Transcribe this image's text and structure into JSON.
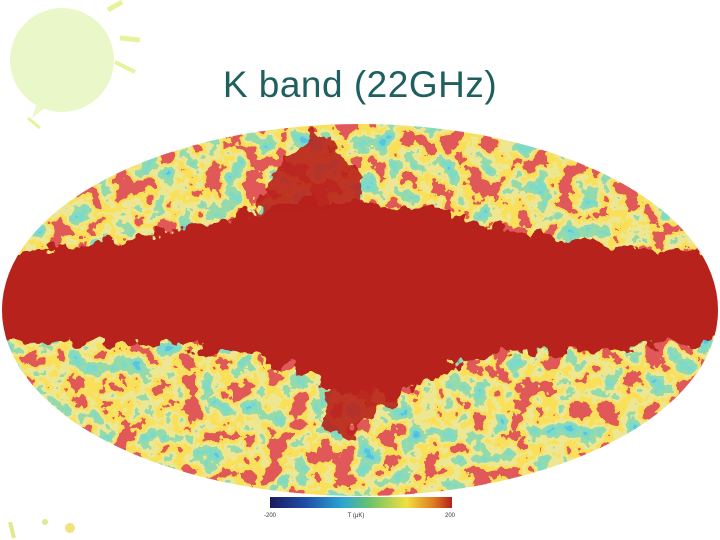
{
  "slide": {
    "title": "K band (22GHz)",
    "colorbar": {
      "min_label": "-200",
      "unit_label": "T (μK)",
      "max_label": "200"
    }
  }
}
